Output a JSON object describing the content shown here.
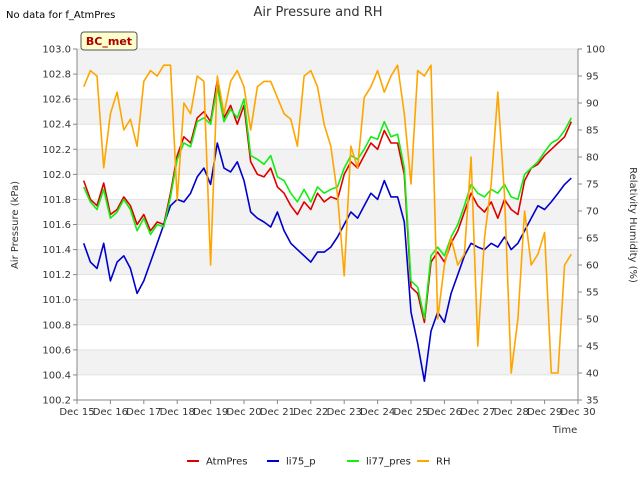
{
  "chart_data": {
    "type": "line",
    "title": "Air Pressure and RH",
    "note": "No data for f_AtmPres",
    "station": "BC_met",
    "xlabel": "Time",
    "ylabel_left": "Air Pressure (kPa)",
    "ylabel_right": "Relativity Humidity (%)",
    "x_ticks": [
      "Dec 15",
      "Dec 16",
      "Dec 17",
      "Dec 18",
      "Dec 19",
      "Dec 20",
      "Dec 21",
      "Dec 22",
      "Dec 23",
      "Dec 24",
      "Dec 25",
      "Dec 26",
      "Dec 27",
      "Dec 28",
      "Dec 29",
      "Dec 30"
    ],
    "xlim_days": [
      15,
      30
    ],
    "ylim_left": [
      100.2,
      103.0
    ],
    "ylim_right": [
      35,
      100
    ],
    "left_ticks": [
      "100.2",
      "100.4",
      "100.6",
      "100.8",
      "101.0",
      "101.2",
      "101.4",
      "101.6",
      "101.8",
      "102.0",
      "102.2",
      "102.4",
      "102.6",
      "102.8",
      "103.0"
    ],
    "right_ticks": [
      "35",
      "40",
      "45",
      "50",
      "55",
      "60",
      "65",
      "70",
      "75",
      "80",
      "85",
      "90",
      "95",
      "100"
    ],
    "grid": "horizontal bands",
    "legend_position": "bottom",
    "series": [
      {
        "name": "AtmPres",
        "color": "#dd0000",
        "axis": "left",
        "x": [
          15.2,
          15.4,
          15.6,
          15.8,
          16.0,
          16.2,
          16.4,
          16.6,
          16.8,
          17.0,
          17.2,
          17.4,
          17.6,
          17.8,
          18.0,
          18.2,
          18.4,
          18.6,
          18.8,
          19.0,
          19.2,
          19.4,
          19.6,
          19.8,
          20.0,
          20.2,
          20.4,
          20.6,
          20.8,
          21.0,
          21.2,
          21.4,
          21.6,
          21.8,
          22.0,
          22.2,
          22.4,
          22.6,
          22.8,
          23.0,
          23.2,
          23.4,
          23.6,
          23.8,
          24.0,
          24.2,
          24.4,
          24.6,
          24.8,
          25.0,
          25.2,
          25.4,
          25.6,
          25.8,
          26.0,
          26.2,
          26.4,
          26.6,
          26.8,
          27.0,
          27.2,
          27.4,
          27.6,
          27.8,
          28.0,
          28.2,
          28.4,
          28.6,
          28.8,
          29.0,
          29.2,
          29.4,
          29.6,
          29.8
        ],
        "y": [
          101.95,
          101.8,
          101.75,
          101.93,
          101.68,
          101.72,
          101.82,
          101.75,
          101.6,
          101.68,
          101.55,
          101.62,
          101.6,
          101.85,
          102.15,
          102.3,
          102.25,
          102.45,
          102.5,
          102.42,
          102.75,
          102.45,
          102.55,
          102.4,
          102.55,
          102.1,
          102.0,
          101.98,
          102.05,
          101.9,
          101.85,
          101.75,
          101.68,
          101.78,
          101.72,
          101.85,
          101.78,
          101.82,
          101.8,
          102.0,
          102.1,
          102.05,
          102.15,
          102.25,
          102.2,
          102.35,
          102.25,
          102.25,
          102.0,
          101.1,
          101.05,
          100.82,
          101.3,
          101.38,
          101.3,
          101.45,
          101.55,
          101.7,
          101.85,
          101.75,
          101.7,
          101.78,
          101.65,
          101.8,
          101.72,
          101.68,
          101.95,
          102.05,
          102.08,
          102.15,
          102.2,
          102.25,
          102.3,
          102.42
        ]
      },
      {
        "name": "li75_p",
        "color": "#0000cc",
        "axis": "left",
        "x": [
          15.2,
          15.4,
          15.6,
          15.8,
          16.0,
          16.2,
          16.4,
          16.6,
          16.8,
          17.0,
          17.2,
          17.4,
          17.6,
          17.8,
          18.0,
          18.2,
          18.4,
          18.6,
          18.8,
          19.0,
          19.2,
          19.4,
          19.6,
          19.8,
          20.0,
          20.2,
          20.4,
          20.6,
          20.8,
          21.0,
          21.2,
          21.4,
          21.6,
          21.8,
          22.0,
          22.2,
          22.4,
          22.6,
          22.8,
          23.0,
          23.2,
          23.4,
          23.6,
          23.8,
          24.0,
          24.2,
          24.4,
          24.6,
          24.8,
          25.0,
          25.2,
          25.4,
          25.6,
          25.8,
          26.0,
          26.2,
          26.4,
          26.6,
          26.8,
          27.0,
          27.2,
          27.4,
          27.6,
          27.8,
          28.0,
          28.2,
          28.4,
          28.6,
          28.8,
          29.0,
          29.2,
          29.4,
          29.6,
          29.8
        ],
        "y": [
          101.45,
          101.3,
          101.25,
          101.45,
          101.15,
          101.3,
          101.35,
          101.25,
          101.05,
          101.15,
          101.3,
          101.45,
          101.6,
          101.75,
          101.8,
          101.78,
          101.85,
          101.98,
          102.05,
          101.92,
          102.25,
          102.05,
          102.02,
          102.1,
          101.95,
          101.7,
          101.65,
          101.62,
          101.58,
          101.7,
          101.55,
          101.45,
          101.4,
          101.35,
          101.3,
          101.38,
          101.38,
          101.42,
          101.5,
          101.6,
          101.7,
          101.65,
          101.75,
          101.85,
          101.8,
          101.95,
          101.82,
          101.82,
          101.62,
          100.9,
          100.65,
          100.35,
          100.75,
          100.9,
          100.82,
          101.05,
          101.2,
          101.35,
          101.45,
          101.42,
          101.4,
          101.45,
          101.42,
          101.5,
          101.4,
          101.45,
          101.55,
          101.65,
          101.75,
          101.72,
          101.78,
          101.85,
          101.92,
          101.97
        ]
      },
      {
        "name": "li77_pres",
        "color": "#11ee11",
        "axis": "left",
        "x": [
          15.2,
          15.4,
          15.6,
          15.8,
          16.0,
          16.2,
          16.4,
          16.6,
          16.8,
          17.0,
          17.2,
          17.4,
          17.6,
          17.8,
          18.0,
          18.2,
          18.4,
          18.6,
          18.8,
          19.0,
          19.2,
          19.4,
          19.6,
          19.8,
          20.0,
          20.2,
          20.4,
          20.6,
          20.8,
          21.0,
          21.2,
          21.4,
          21.6,
          21.8,
          22.0,
          22.2,
          22.4,
          22.6,
          22.8,
          23.0,
          23.2,
          23.4,
          23.6,
          23.8,
          24.0,
          24.2,
          24.4,
          24.6,
          24.8,
          25.0,
          25.2,
          25.4,
          25.6,
          25.8,
          26.0,
          26.2,
          26.4,
          26.6,
          26.8,
          27.0,
          27.2,
          27.4,
          27.6,
          27.8,
          28.0,
          28.2,
          28.4,
          28.6,
          28.8,
          29.0,
          29.2,
          29.4,
          29.6,
          29.8
        ],
        "y": [
          101.9,
          101.78,
          101.72,
          101.88,
          101.65,
          101.7,
          101.8,
          101.72,
          101.55,
          101.65,
          101.52,
          101.6,
          101.58,
          101.82,
          102.12,
          102.25,
          102.22,
          102.42,
          102.45,
          102.4,
          102.7,
          102.42,
          102.52,
          102.45,
          102.6,
          102.15,
          102.12,
          102.08,
          102.15,
          101.98,
          101.95,
          101.85,
          101.78,
          101.88,
          101.78,
          101.9,
          101.85,
          101.88,
          101.9,
          102.05,
          102.15,
          102.12,
          102.2,
          102.3,
          102.28,
          102.42,
          102.3,
          102.32,
          102.05,
          101.15,
          101.1,
          100.85,
          101.35,
          101.42,
          101.35,
          101.5,
          101.6,
          101.75,
          101.92,
          101.85,
          101.82,
          101.88,
          101.85,
          101.92,
          101.82,
          101.8,
          102.0,
          102.05,
          102.1,
          102.18,
          102.25,
          102.28,
          102.35,
          102.45
        ]
      },
      {
        "name": "RH",
        "color": "#ffa500",
        "axis": "right",
        "x": [
          15.2,
          15.4,
          15.6,
          15.8,
          16.0,
          16.2,
          16.4,
          16.6,
          16.8,
          17.0,
          17.2,
          17.4,
          17.6,
          17.8,
          18.0,
          18.2,
          18.4,
          18.6,
          18.8,
          19.0,
          19.2,
          19.4,
          19.6,
          19.8,
          20.0,
          20.2,
          20.4,
          20.6,
          20.8,
          21.0,
          21.2,
          21.4,
          21.6,
          21.8,
          22.0,
          22.2,
          22.4,
          22.6,
          22.8,
          23.0,
          23.2,
          23.4,
          23.6,
          23.8,
          24.0,
          24.2,
          24.4,
          24.6,
          24.8,
          25.0,
          25.2,
          25.4,
          25.6,
          25.8,
          26.0,
          26.2,
          26.4,
          26.6,
          26.8,
          27.0,
          27.2,
          27.4,
          27.6,
          27.8,
          28.0,
          28.2,
          28.4,
          28.6,
          28.8,
          29.0,
          29.2,
          29.4,
          29.6,
          29.8
        ],
        "y": [
          93,
          96,
          95,
          78,
          88,
          92,
          85,
          87,
          82,
          94,
          96,
          95,
          97,
          97,
          72,
          90,
          88,
          95,
          94,
          60,
          95,
          88,
          94,
          96,
          93,
          85,
          93,
          94,
          94,
          91,
          88,
          87,
          82,
          95,
          96,
          93,
          86,
          82,
          73,
          58,
          82,
          78,
          91,
          93,
          96,
          92,
          95,
          97,
          88,
          75,
          96,
          95,
          97,
          50,
          60,
          65,
          60,
          62,
          80,
          45,
          65,
          75,
          92,
          73,
          40,
          50,
          70,
          60,
          62,
          66,
          40,
          40,
          60,
          62
        ]
      }
    ]
  }
}
